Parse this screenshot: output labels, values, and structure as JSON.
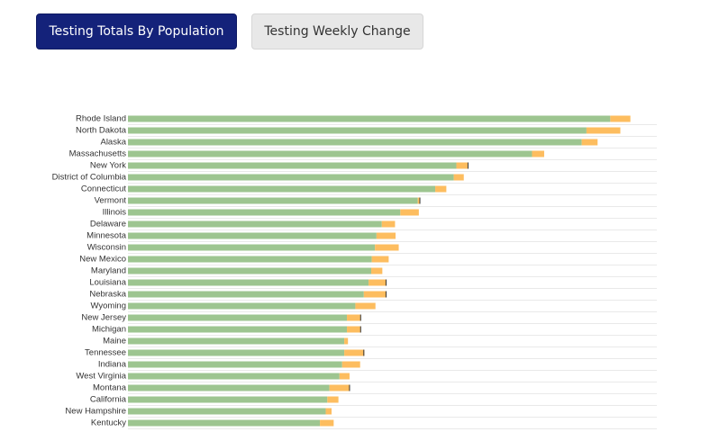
{
  "tabs": [
    {
      "label": "Testing Totals By Population",
      "active": true
    },
    {
      "label": "Testing Weekly Change",
      "active": false
    }
  ],
  "colors": {
    "tab_active_bg": "#14227a",
    "tab_inactive_bg": "#e8e8e8",
    "series_1": "#9dc590",
    "series_2": "#fdbd5f",
    "marker": "#333333"
  },
  "chart_data": {
    "type": "bar",
    "orientation": "horizontal",
    "stacked": true,
    "grid": true,
    "legend": "none",
    "xlim": [
      0,
      1
    ],
    "categories": [
      "Rhode Island",
      "North Dakota",
      "Alaska",
      "Massachusetts",
      "New York",
      "District of Columbia",
      "Connecticut",
      "Vermont",
      "Illinois",
      "Delaware",
      "Minnesota",
      "Wisconsin",
      "New Mexico",
      "Maryland",
      "Louisiana",
      "Nebraska",
      "Wyoming",
      "New Jersey",
      "Michigan",
      "Maine",
      "Tennessee",
      "Indiana",
      "West Virginia",
      "Montana",
      "California",
      "New Hampshire",
      "Kentucky"
    ],
    "series": [
      {
        "values": [
          0.912,
          0.867,
          0.858,
          0.764,
          0.621,
          0.616,
          0.581,
          0.548,
          0.515,
          0.48,
          0.47,
          0.467,
          0.461,
          0.46,
          0.455,
          0.446,
          0.43,
          0.414,
          0.414,
          0.409,
          0.409,
          0.405,
          0.4,
          0.381,
          0.377,
          0.374,
          0.363
        ]
      },
      {
        "values": [
          0.038,
          0.064,
          0.03,
          0.023,
          0.022,
          0.019,
          0.021,
          0.004,
          0.035,
          0.025,
          0.036,
          0.045,
          0.032,
          0.021,
          0.034,
          0.043,
          0.038,
          0.026,
          0.026,
          0.007,
          0.038,
          0.034,
          0.019,
          0.038,
          0.021,
          0.011,
          0.026
        ]
      }
    ],
    "markers": [
      0.0,
      0.0,
      0.0,
      0.0,
      0.643,
      0.0,
      0.0,
      0.552,
      0.0,
      0.0,
      0.0,
      0.0,
      0.0,
      0.0,
      0.488,
      0.488,
      0.0,
      0.44,
      0.44,
      0.0,
      0.446,
      0.0,
      0.0,
      0.419,
      0.0,
      0.0,
      0.0
    ]
  }
}
